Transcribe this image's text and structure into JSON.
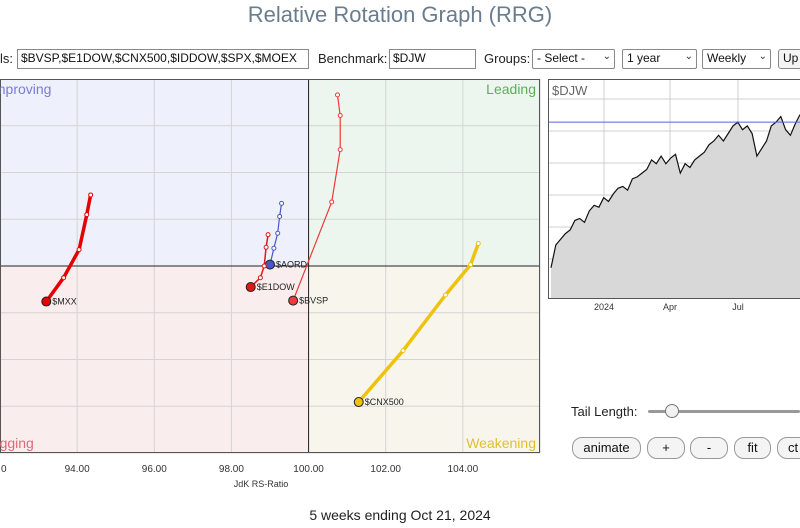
{
  "title": "Relative Rotation Graph (RRG)",
  "controls": {
    "symbols_label": "ls:",
    "symbols_value": "$BVSP,$E1DOW,$CNX500,$IDDOW,$SPX,$MOEX",
    "benchmark_label": "Benchmark:",
    "benchmark_value": "$DJW",
    "groups_label": "Groups:",
    "groups_value": "- Select -",
    "period_value": "1 year",
    "frequency_value": "Weekly",
    "update_label": "Up"
  },
  "chart_data": {
    "type": "scatter",
    "subtype": "relative-rotation-graph",
    "xlabel": "JdK RS-Ratio",
    "xlim": [
      92.0,
      106.0
    ],
    "ylim": [
      96.0,
      104.0
    ],
    "x_ticks": [
      "94.00",
      "96.00",
      "98.00",
      "100.00",
      "102.00",
      "104.00"
    ],
    "partial_x_tick": "0",
    "center": [
      100.0,
      100.0
    ],
    "quadrants": {
      "improving": "Improving",
      "leading": "Leading",
      "weakening": "Weakening",
      "lagging": "Lagging"
    },
    "colors": {
      "improving": "#eef0fb",
      "leading": "#edf6ee",
      "weakening": "#f8f6ec",
      "lagging": "#f9edee",
      "improving_text": "#7b7bd6",
      "leading_text": "#5cad5c",
      "weakening_text": "#e0c030",
      "lagging_text": "#e06a7a"
    },
    "series": [
      {
        "name": "$MXX",
        "color": "#e60000",
        "width": 3.5,
        "points": [
          [
            94.35,
            101.52
          ],
          [
            94.25,
            101.1
          ],
          [
            94.05,
            100.35
          ],
          [
            93.65,
            99.75
          ],
          [
            93.2,
            99.24
          ]
        ]
      },
      {
        "name": "$BVSP",
        "color": "#f03a3a",
        "width": 1.2,
        "points": [
          [
            100.75,
            103.66
          ],
          [
            100.82,
            103.22
          ],
          [
            100.82,
            102.49
          ],
          [
            100.6,
            101.37
          ],
          [
            99.6,
            99.26
          ]
        ]
      },
      {
        "name": "$AORD",
        "color": "#4a55c8",
        "width": 1.2,
        "points": [
          [
            99.3,
            101.34
          ],
          [
            99.25,
            101.06
          ],
          [
            99.2,
            100.7
          ],
          [
            99.1,
            100.38
          ],
          [
            99.0,
            100.03
          ]
        ]
      },
      {
        "name": "$E1DOW",
        "color": "#dd1a1a",
        "width": 1.5,
        "points": [
          [
            98.95,
            100.67
          ],
          [
            98.9,
            100.4
          ],
          [
            98.85,
            100.0
          ],
          [
            98.75,
            99.75
          ],
          [
            98.5,
            99.55
          ]
        ]
      },
      {
        "name": "$CNX500",
        "color": "#eec20d",
        "width": 3.5,
        "points": [
          [
            104.4,
            100.48
          ],
          [
            104.2,
            100.03
          ],
          [
            103.55,
            99.38
          ],
          [
            102.45,
            98.19
          ],
          [
            101.3,
            97.09
          ]
        ]
      }
    ]
  },
  "price_chart": {
    "symbol": "$DJW",
    "x_ticks": [
      "2024",
      "Apr",
      "Jul"
    ],
    "y_range": [
      0,
      100
    ],
    "reference_level": 92,
    "values": [
      15,
      27,
      30,
      33,
      35,
      40,
      41,
      39,
      45,
      48,
      47,
      52,
      50,
      54,
      57,
      58,
      56,
      62,
      63,
      65,
      67,
      72,
      70,
      74,
      70,
      73,
      75,
      65,
      70,
      68,
      72,
      74,
      76,
      80,
      82,
      85,
      82,
      86,
      90,
      92,
      88,
      90,
      86,
      74,
      78,
      82,
      90,
      92,
      95,
      88,
      85,
      91,
      96
    ]
  },
  "tail": {
    "label": "Tail Length:",
    "value": 5,
    "min": 1,
    "max": 52
  },
  "buttons": {
    "animate": "animate",
    "plus": "+",
    "minus": "-",
    "fit": "fit",
    "ctrl": "ct"
  },
  "footer": "5 weeks ending Oct 21, 2024"
}
